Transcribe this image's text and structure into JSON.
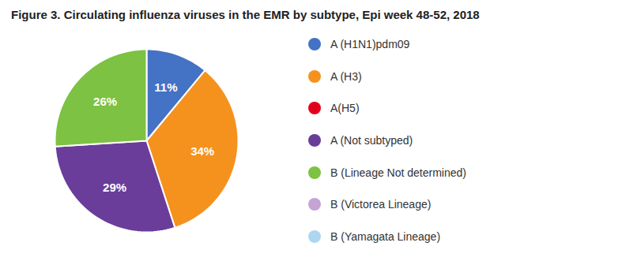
{
  "chart_data": {
    "type": "pie",
    "title": "Figure 3. Circulating influenza viruses in the EMR by subtype, Epi week 48-52, 2018",
    "values": [
      11,
      34,
      29,
      26
    ],
    "value_labels": [
      "11%",
      "34%",
      "29%",
      "26%"
    ],
    "colors": [
      "#4472c4",
      "#f5921e",
      "#6a3d9a",
      "#7dc242"
    ],
    "data_labels": true,
    "legend": "right",
    "legend_entries": [
      {
        "name": "A (H1N1)pdm09",
        "color": "#4472c4"
      },
      {
        "name": "A (H3)",
        "color": "#f5921e"
      },
      {
        "name": "A(H5)",
        "color": "#e3001b"
      },
      {
        "name": "A (Not subtyped)",
        "color": "#6a3d9a"
      },
      {
        "name": "B (Lineage Not determined)",
        "color": "#7dc242"
      },
      {
        "name": "B (Victorea Lineage)",
        "color": "#c5a3d4"
      },
      {
        "name": "B (Yamagata Lineage)",
        "color": "#aed6f1"
      }
    ]
  }
}
